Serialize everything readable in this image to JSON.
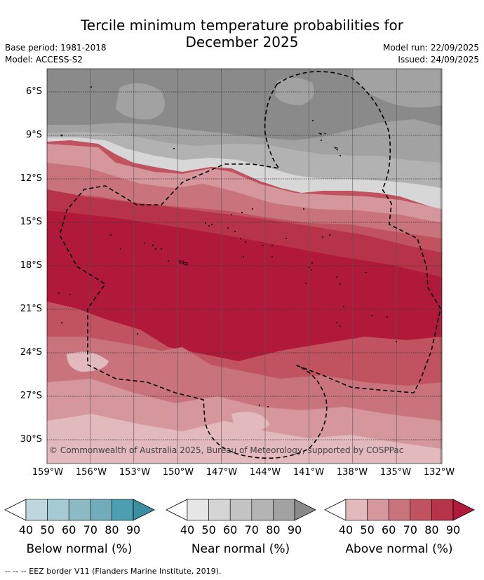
{
  "title_line1": "Tercile minimum temperature probabilities for",
  "title_line2": "December 2025",
  "base_period": "Base period: 1981-2018",
  "model": "Model: ACCESS-S2",
  "model_run": "Model run: 22/09/2025",
  "issued": "Issued: 24/09/2025",
  "copyright": "© Commonwealth of Australia 2025, Bureau of Meteorology, supported by COSPPac",
  "lat_labels": [
    "6°S",
    "9°S",
    "12°S",
    "15°S",
    "18°S",
    "21°S",
    "24°S",
    "27°S",
    "30°S"
  ],
  "lon_labels": [
    "159°W",
    "156°W",
    "153°W",
    "150°W",
    "147°W",
    "144°W",
    "141°W",
    "138°W",
    "135°W",
    "132°W"
  ],
  "colorbars": [
    {
      "label": "Below normal (%)",
      "ticks": [
        "40",
        "50",
        "60",
        "70",
        "80",
        "90"
      ],
      "colors": [
        "#bed7dd",
        "#a6cad3",
        "#8cbac5",
        "#72abb9",
        "#4b9fb0"
      ]
    },
    {
      "label": "Near normal (%)",
      "ticks": [
        "40",
        "50",
        "60",
        "70",
        "80",
        "90"
      ],
      "colors": [
        "#e6e6e6",
        "#d5d5d5",
        "#c4c4c4",
        "#b4b4b4",
        "#a2a2a2"
      ]
    },
    {
      "label": "Above normal (%)",
      "ticks": [
        "40",
        "50",
        "60",
        "70",
        "80",
        "90"
      ],
      "colors": [
        "#e2b9bd",
        "#d5969c",
        "#c9737c",
        "#c0535f",
        "#b7334a"
      ]
    }
  ],
  "extend_color_below": "#3c8fa2",
  "extend_color_near": "#8a8a8a",
  "extend_color_above": "#b1193b",
  "footer": "--  --  -- EEZ border V11 (Flanders Marine Institute, 2019)."
}
